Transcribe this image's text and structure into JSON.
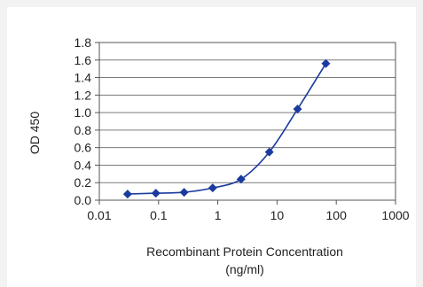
{
  "chart_data": {
    "type": "scatter",
    "ylabel": "OD 450",
    "xlabel": "Recombinant Protein Concentration",
    "xlabel_units": "(ng/ml)",
    "x_scale": "log",
    "xlim": [
      0.01,
      1000
    ],
    "ylim": [
      0,
      1.8
    ],
    "x_ticks": [
      "0.01",
      "0.1",
      "1",
      "10",
      "100",
      "1000"
    ],
    "x_tick_values": [
      0.01,
      0.1,
      1,
      10,
      100,
      1000
    ],
    "y_ticks": [
      "0.0",
      "0.2",
      "0.4",
      "0.6",
      "0.8",
      "1.0",
      "1.2",
      "1.4",
      "1.6",
      "1.8"
    ],
    "y_tick_values": [
      0,
      0.2,
      0.4,
      0.6,
      0.8,
      1.0,
      1.2,
      1.4,
      1.6,
      1.8
    ],
    "grid": "horizontal",
    "series": [
      {
        "x": [
          0.03,
          0.09,
          0.27,
          0.82,
          2.47,
          7.41,
          22.2,
          66.7
        ],
        "y": [
          0.07,
          0.08,
          0.09,
          0.14,
          0.24,
          0.55,
          1.04,
          1.56
        ],
        "color": "#1b3a9e",
        "marker": "diamond",
        "line": "smooth"
      }
    ]
  }
}
